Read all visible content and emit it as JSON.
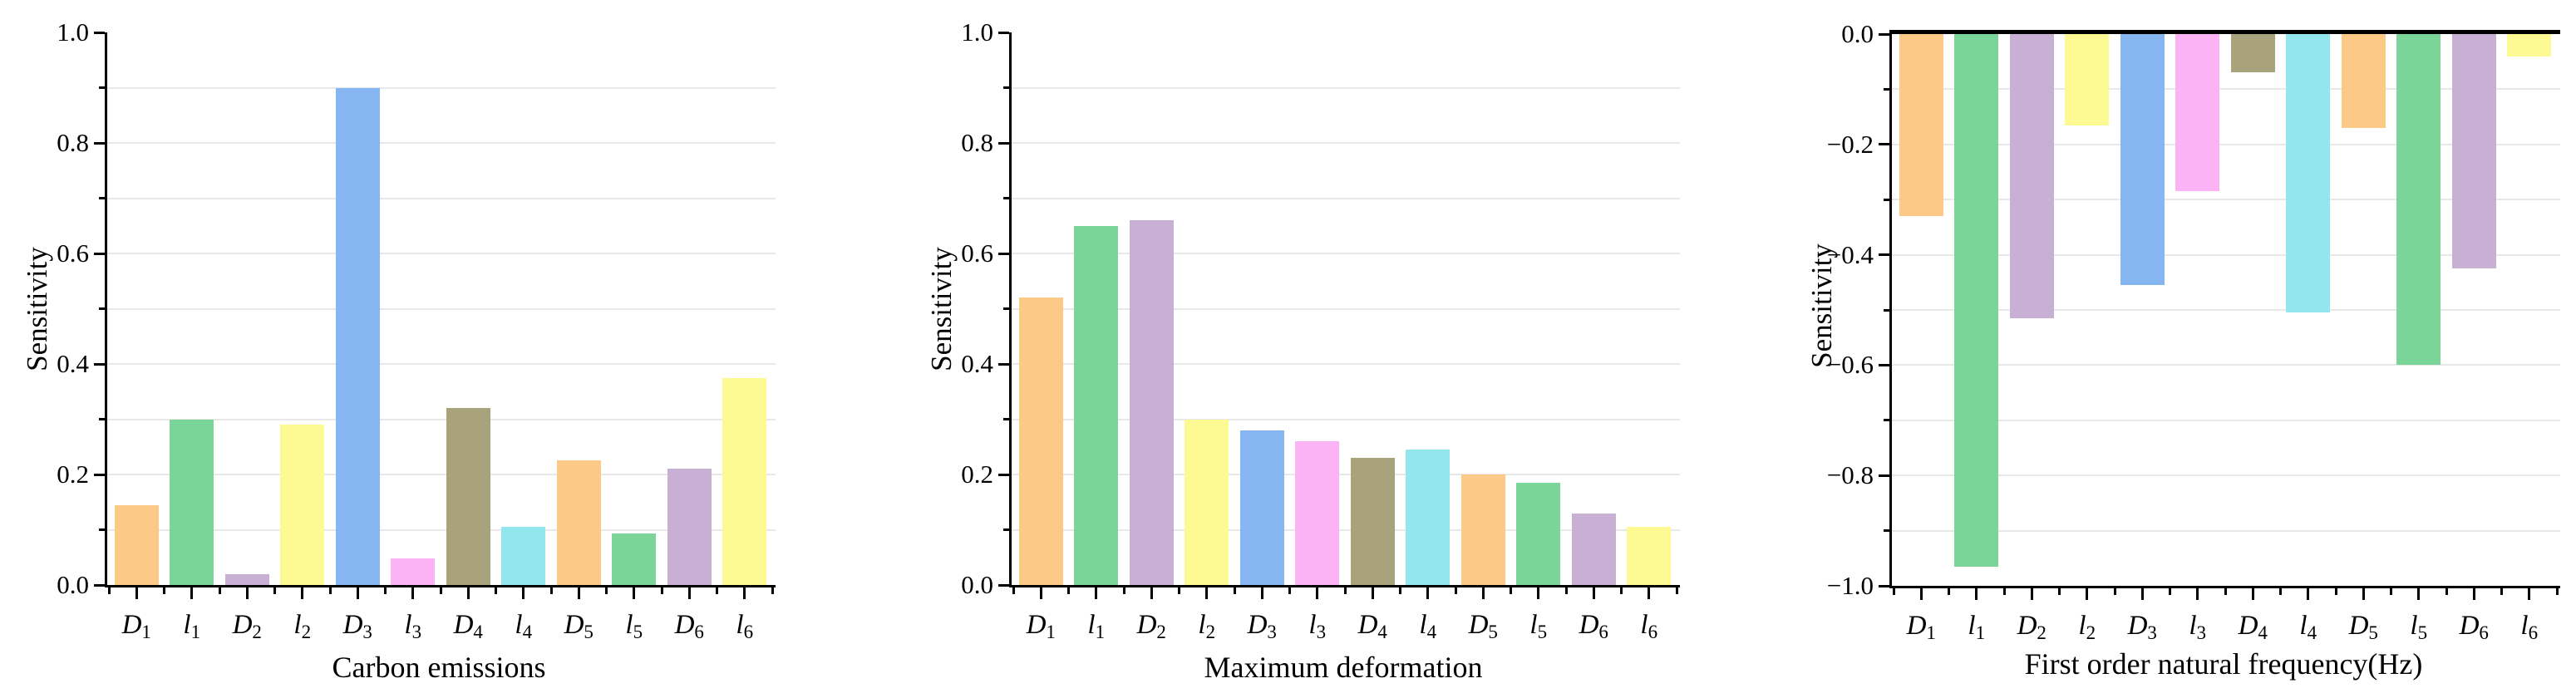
{
  "figure": {
    "background": "#ffffff",
    "axis_color": "#000000",
    "grid_color": "#e8e8e8",
    "palette": [
      "#FCC987",
      "#7CD598",
      "#C7B0D3",
      "#FDFA94",
      "#86B6F1",
      "#FBB3F6",
      "#A9A37C",
      "#92E6ED"
    ]
  },
  "categories": [
    {
      "base": "D",
      "sub": "1"
    },
    {
      "base": "l",
      "sub": "1"
    },
    {
      "base": "D",
      "sub": "2"
    },
    {
      "base": "l",
      "sub": "2"
    },
    {
      "base": "D",
      "sub": "3"
    },
    {
      "base": "l",
      "sub": "3"
    },
    {
      "base": "D",
      "sub": "4"
    },
    {
      "base": "l",
      "sub": "4"
    },
    {
      "base": "D",
      "sub": "5"
    },
    {
      "base": "l",
      "sub": "5"
    },
    {
      "base": "D",
      "sub": "6"
    },
    {
      "base": "l",
      "sub": "6"
    }
  ],
  "chart_data": [
    {
      "type": "bar",
      "xlabel": "Carbon emissions",
      "ylabel": "Sensitivity",
      "categories": [
        "D_1",
        "l_1",
        "D_2",
        "l_2",
        "D_3",
        "l_3",
        "D_4",
        "l_4",
        "D_5",
        "l_5",
        "D_6",
        "l_6"
      ],
      "values": [
        0.145,
        0.3,
        0.02,
        0.29,
        0.9,
        0.048,
        0.32,
        0.105,
        0.225,
        0.093,
        0.21,
        0.375
      ],
      "ylim": [
        0,
        1.0
      ],
      "ytick_values": [
        0,
        0.2,
        0.4,
        0.6,
        0.8,
        1.0
      ],
      "ytick_labels": [
        "0.0",
        "0.2",
        "0.4",
        "0.6",
        "0.8",
        "1.0"
      ],
      "minor_tick_step": 0.1,
      "grid": "horizontal, every 0.1",
      "legend": "none"
    },
    {
      "type": "bar",
      "xlabel": "Maximum deformation",
      "ylabel": "Sensitivity",
      "categories": [
        "D_1",
        "l_1",
        "D_2",
        "l_2",
        "D_3",
        "l_3",
        "D_4",
        "l_4",
        "D_5",
        "l_5",
        "D_6",
        "l_6"
      ],
      "values": [
        0.52,
        0.65,
        0.66,
        0.3,
        0.28,
        0.26,
        0.23,
        0.245,
        0.2,
        0.185,
        0.13,
        0.105
      ],
      "ylim": [
        0,
        1.0
      ],
      "ytick_values": [
        0,
        0.2,
        0.4,
        0.6,
        0.8,
        1.0
      ],
      "ytick_labels": [
        "0.0",
        "0.2",
        "0.4",
        "0.6",
        "0.8",
        "1.0"
      ],
      "minor_tick_step": 0.1,
      "grid": "horizontal, every 0.1",
      "legend": "none"
    },
    {
      "type": "bar",
      "xlabel": "First order natural frequency(Hz)",
      "ylabel": "Sensitivity",
      "categories": [
        "D_1",
        "l_1",
        "D_2",
        "l_2",
        "D_3",
        "l_3",
        "D_4",
        "l_4",
        "D_5",
        "l_5",
        "D_6",
        "l_6"
      ],
      "values": [
        -0.33,
        -0.965,
        -0.515,
        -0.165,
        -0.455,
        -0.285,
        -0.07,
        -0.505,
        -0.17,
        -0.6,
        -0.425,
        -0.04
      ],
      "ylim": [
        -1.0,
        0
      ],
      "ytick_values": [
        0,
        -0.2,
        -0.4,
        -0.6,
        -0.8,
        -1.0
      ],
      "ytick_labels": [
        "0.0",
        "−0.2",
        "−0.4",
        "−0.6",
        "−0.8",
        "−1.0"
      ],
      "minor_tick_step": 0.1,
      "grid": "horizontal, every 0.1",
      "legend": "none"
    }
  ]
}
